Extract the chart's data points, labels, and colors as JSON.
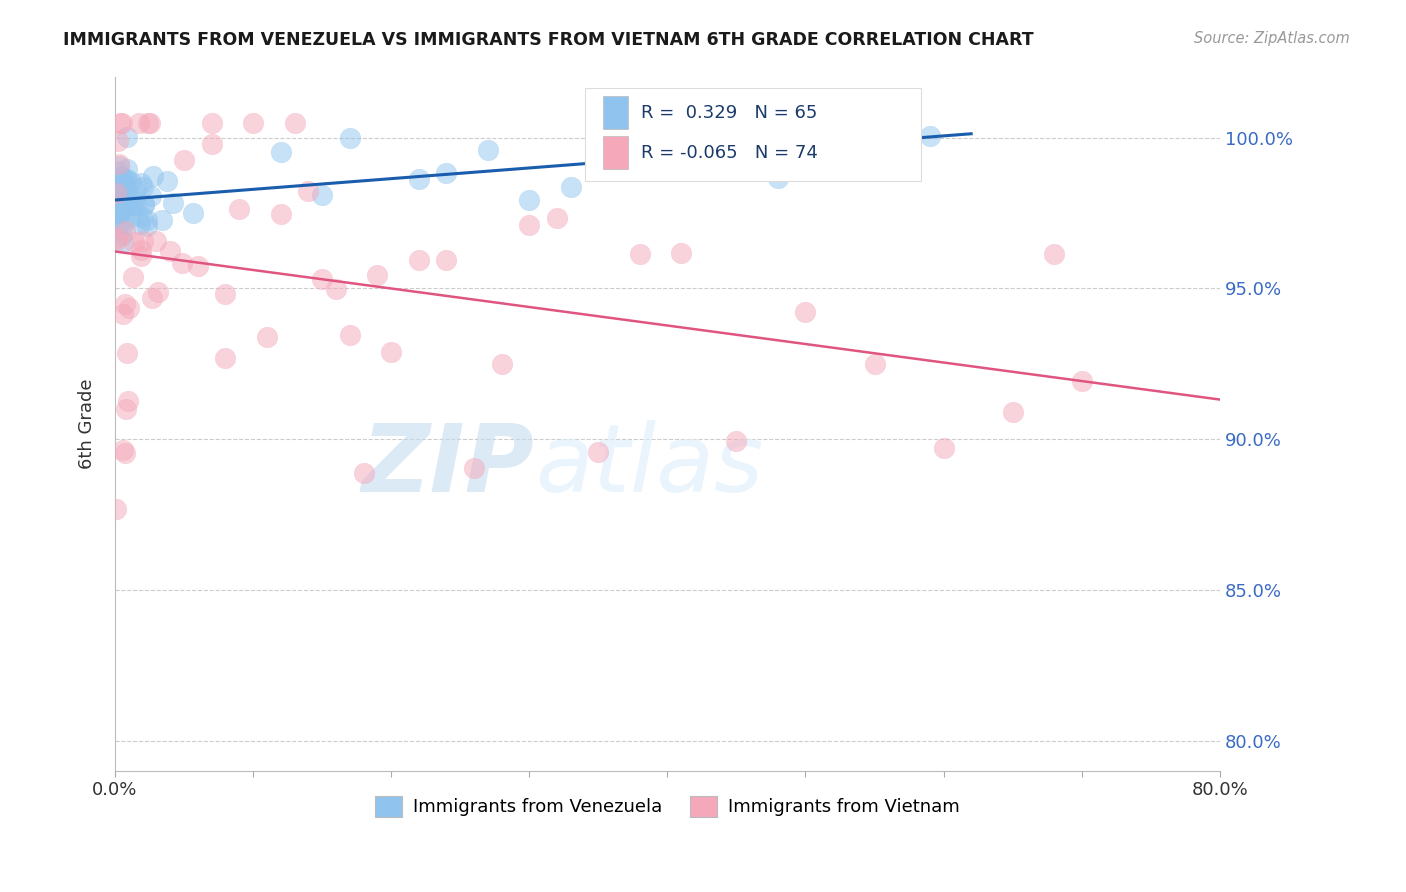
{
  "title": "IMMIGRANTS FROM VENEZUELA VS IMMIGRANTS FROM VIETNAM 6TH GRADE CORRELATION CHART",
  "source": "Source: ZipAtlas.com",
  "ylabel": "6th Grade",
  "xlim": [
    0.0,
    80.0
  ],
  "ylim": [
    79.0,
    102.0
  ],
  "yticks": [
    80.0,
    85.0,
    90.0,
    95.0,
    100.0
  ],
  "ytick_labels": [
    "80.0%",
    "85.0%",
    "90.0%",
    "95.0%",
    "100.0%"
  ],
  "xticks": [
    0.0,
    10.0,
    20.0,
    30.0,
    40.0,
    50.0,
    60.0,
    70.0,
    80.0
  ],
  "r_venezuela": 0.329,
  "n_venezuela": 65,
  "r_vietnam": -0.065,
  "n_vietnam": 74,
  "color_venezuela": "#90C4EE",
  "color_vietnam": "#F4A8BA",
  "trendline_venezuela": "#1A5DAD",
  "trendline_vietnam": "#E05580",
  "background_color": "#FFFFFF",
  "watermark_zip": "ZIP",
  "watermark_atlas": "atlas",
  "legend_label_ven": "Immigrants from Venezuela",
  "legend_label_vie": "Immigrants from Vietnam",
  "box_r_ven": "R =  0.329",
  "box_n_ven": "N = 65",
  "box_r_vie": "R = -0.065",
  "box_n_vie": "N = 74"
}
